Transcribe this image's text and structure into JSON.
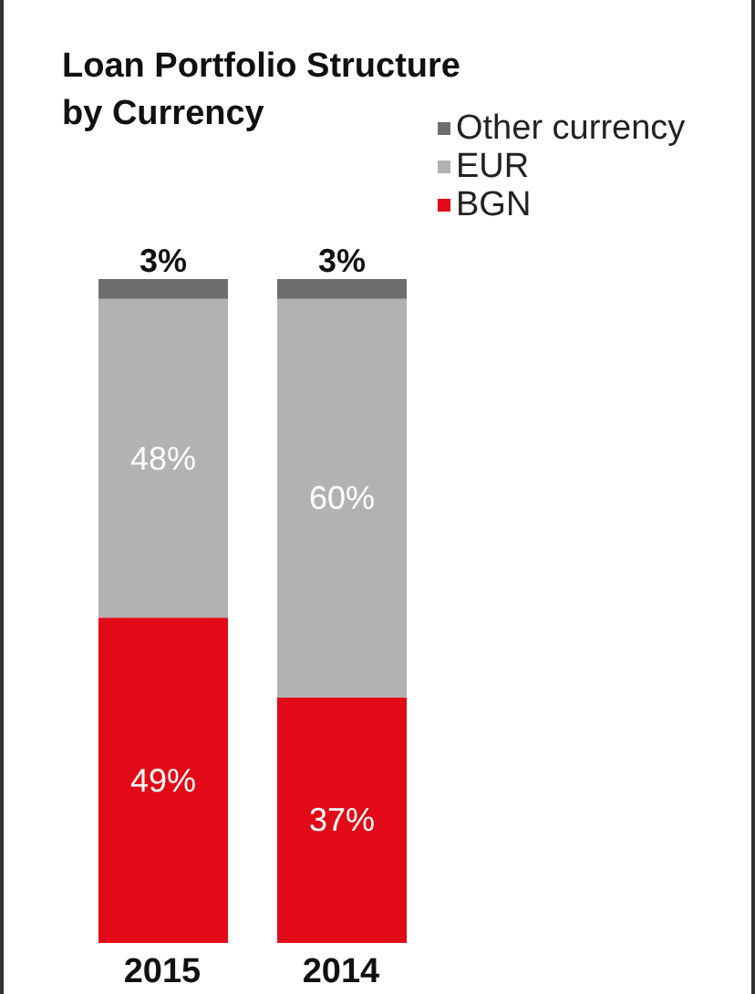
{
  "chart_data": {
    "type": "bar",
    "title": "Loan Portfolio Structure by Currency",
    "stacked": true,
    "categories": [
      "2015",
      "2014"
    ],
    "legend": "top right",
    "series": [
      {
        "name": "BGN",
        "color": "#e10a16",
        "values": [
          49,
          37
        ],
        "value_labels": [
          "49%",
          "37%"
        ]
      },
      {
        "name": "EUR",
        "color": "#b2b2b2",
        "values": [
          48,
          60
        ],
        "value_labels": [
          "48%",
          "60%"
        ]
      },
      {
        "name": "Other currency",
        "color": "#6e6e6e",
        "values": [
          3,
          3
        ],
        "value_labels": [
          "3%",
          "3%"
        ]
      }
    ],
    "relative": false
  }
}
